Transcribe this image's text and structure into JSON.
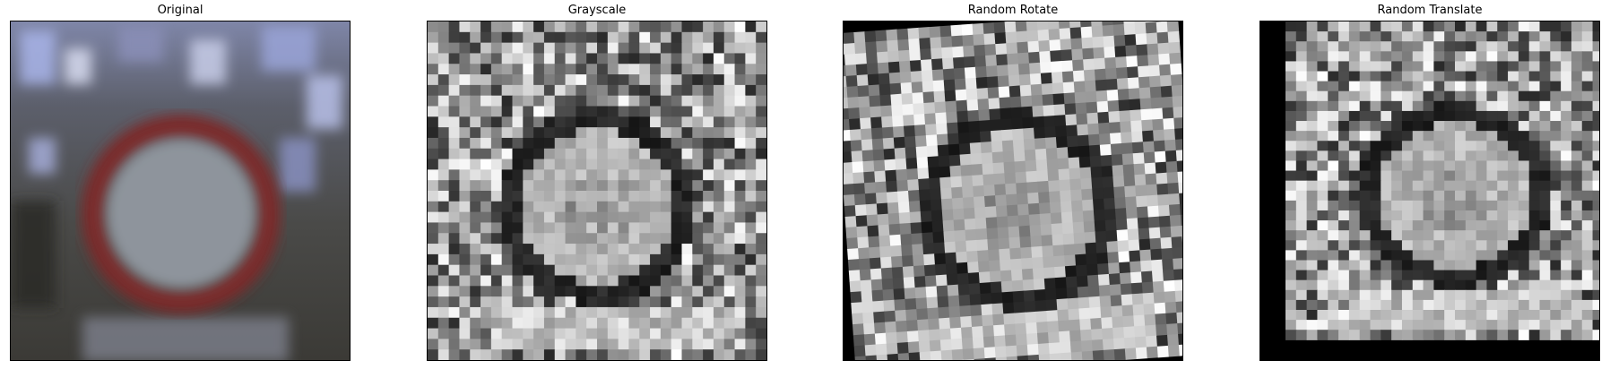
{
  "figure": {
    "panels": [
      {
        "title": "Original"
      },
      {
        "title": "Grayscale"
      },
      {
        "title": "Random Rotate"
      },
      {
        "title": "Random Translate"
      }
    ]
  }
}
